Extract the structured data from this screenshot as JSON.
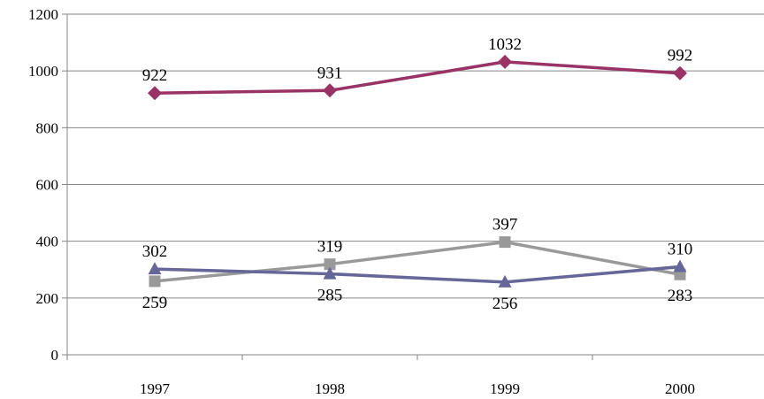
{
  "chart_data": {
    "type": "line",
    "title": "",
    "xlabel": "",
    "ylabel": "",
    "categories": [
      "1997",
      "1998",
      "1999",
      "2000"
    ],
    "ylim": [
      0,
      1200
    ],
    "yticks": [
      "0",
      "200",
      "400",
      "600",
      "800",
      "1000",
      "1200"
    ],
    "grid": true,
    "series": [
      {
        "color": "#993366",
        "marker": "diamond",
        "values": [
          922,
          931,
          1032,
          992
        ],
        "labels": [
          "922",
          "931",
          "1032",
          "992"
        ],
        "label_side": [
          "above",
          "above",
          "above",
          "above"
        ]
      },
      {
        "color": "#999999",
        "marker": "square",
        "values": [
          259,
          319,
          397,
          283
        ],
        "labels": [
          "259",
          "319",
          "397",
          "283"
        ],
        "label_side": [
          "below",
          "above",
          "above",
          "below"
        ]
      },
      {
        "color": "#666699",
        "marker": "triangle",
        "values": [
          302,
          285,
          256,
          310
        ],
        "labels": [
          "302",
          "285",
          "256",
          "310"
        ],
        "label_side": [
          "above",
          "below",
          "below",
          "above"
        ]
      }
    ]
  }
}
